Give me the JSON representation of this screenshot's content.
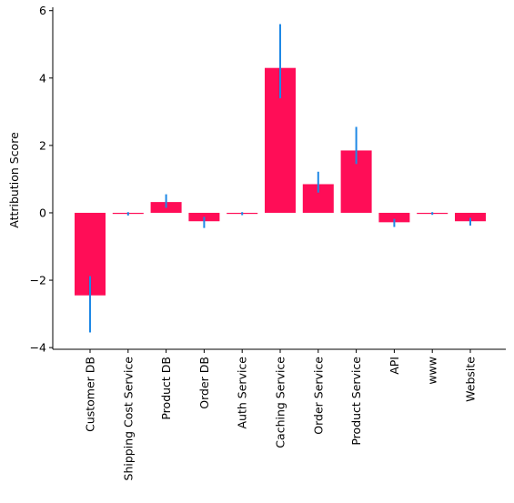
{
  "chart_data": {
    "type": "bar",
    "title": "",
    "xlabel": "",
    "ylabel": "Attribution Score",
    "ylim": [
      -4.05,
      6.1
    ],
    "yticks": [
      -4,
      -2,
      0,
      2,
      4,
      6
    ],
    "ytick_labels": [
      "−4",
      "−2",
      "0",
      "2",
      "4",
      "6"
    ],
    "grid": false,
    "legend": "none",
    "categories": [
      "Customer DB",
      "Shipping Cost Service",
      "Product DB",
      "Order DB",
      "Auth Service",
      "Caching Service",
      "Order Service",
      "Product Service",
      "API",
      "www",
      "Website"
    ],
    "values": [
      -2.45,
      -0.03,
      0.32,
      -0.25,
      -0.02,
      4.3,
      0.85,
      1.85,
      -0.28,
      0.0,
      -0.25
    ],
    "error_low": [
      -3.55,
      -0.08,
      0.15,
      -0.45,
      -0.07,
      3.4,
      0.6,
      1.45,
      -0.42,
      -0.06,
      -0.38
    ],
    "error_high": [
      -1.88,
      0.02,
      0.55,
      -0.12,
      0.02,
      5.6,
      1.22,
      2.55,
      -0.18,
      0.02,
      -0.15
    ],
    "bar_color": "#ff0d57",
    "error_color": "#1e88e5"
  }
}
